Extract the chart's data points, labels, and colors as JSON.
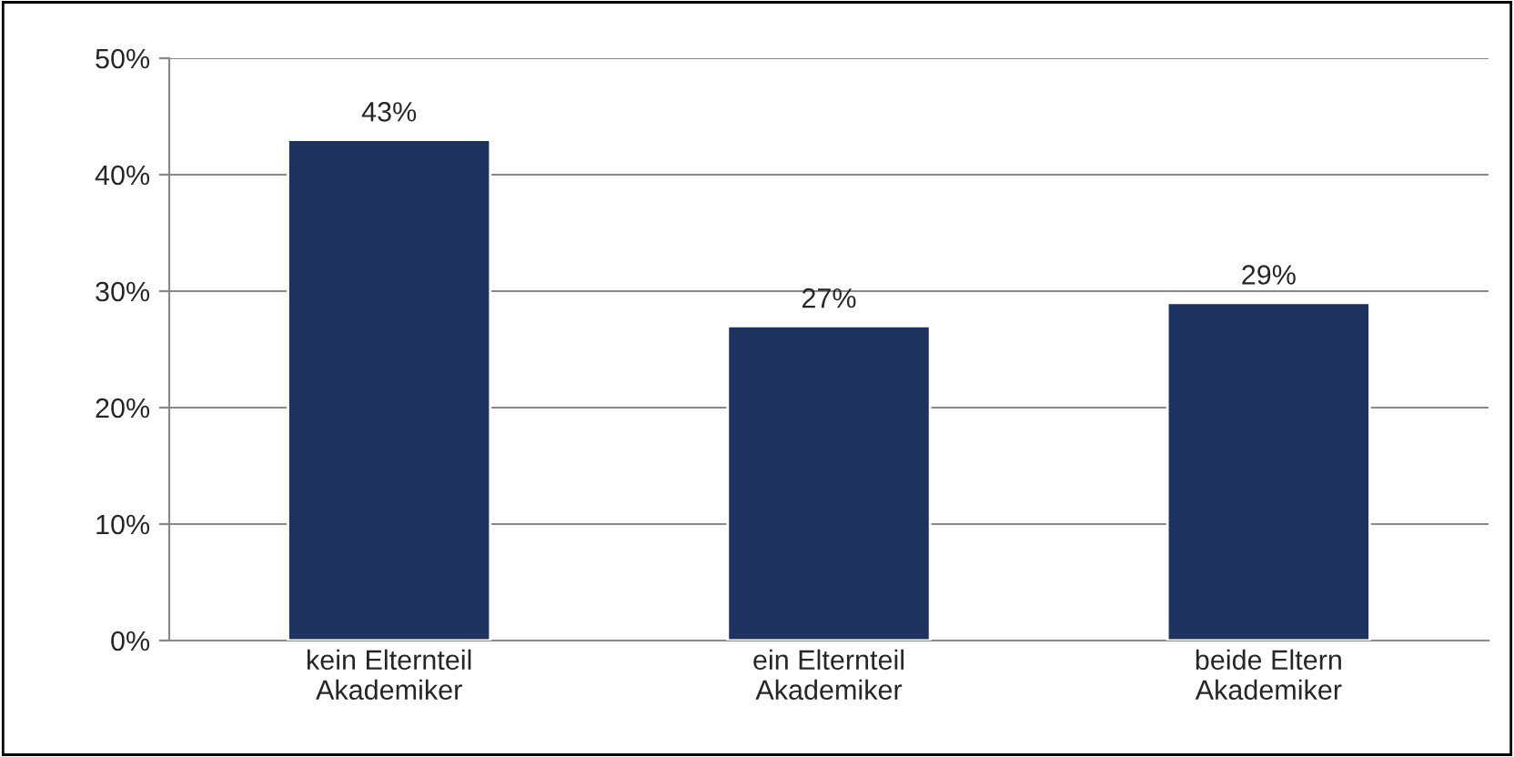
{
  "chart_data": {
    "type": "bar",
    "categories": [
      "kein Elternteil\nAkademiker",
      "ein Elternteil\nAkademiker",
      "beide Eltern\nAkademiker"
    ],
    "values": [
      43,
      27,
      29
    ],
    "color": "#1f3361",
    "ylim": [
      0,
      50
    ],
    "yticks": [
      {
        "value": 0,
        "label": "0%"
      },
      {
        "value": 10,
        "label": "10%"
      },
      {
        "value": 20,
        "label": "20%"
      },
      {
        "value": 30,
        "label": "30%"
      },
      {
        "value": 40,
        "label": "40%"
      },
      {
        "value": 50,
        "label": "50%"
      }
    ],
    "value_labels": [
      "43%",
      "27%",
      "29%"
    ],
    "grid": "y"
  }
}
